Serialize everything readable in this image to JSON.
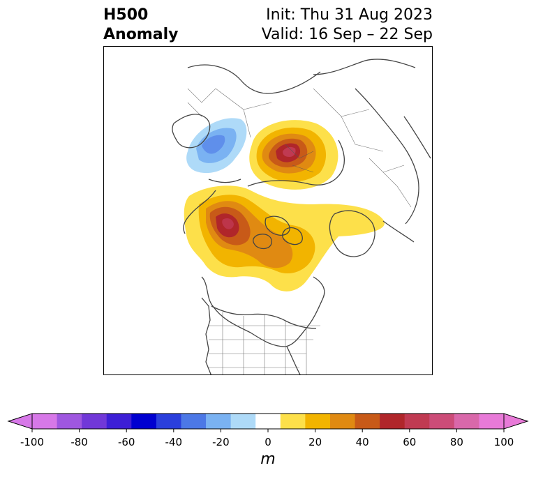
{
  "title": {
    "left_line1": "H500",
    "left_line2": "Anomaly",
    "right_line1": "Init: Thu 31 Aug 2023",
    "right_line2": "Valid: 16 Sep – 22 Sep"
  },
  "colorbar": {
    "unit_label": "m",
    "ticks": [
      "-100",
      "-80",
      "-60",
      "-40",
      "-20",
      "0",
      "20",
      "40",
      "60",
      "80",
      "100"
    ],
    "levels": [
      -100,
      -90,
      -80,
      -70,
      -60,
      -50,
      -40,
      -30,
      -20,
      -10,
      10,
      20,
      30,
      40,
      50,
      60,
      70,
      80,
      90,
      100
    ],
    "colors": [
      "#d778e8",
      "#9f57e0",
      "#7138d8",
      "#3d1fd6",
      "#0000d0",
      "#2a3fdc",
      "#4c78e6",
      "#7ab2f2",
      "#aedaf8",
      "#ffffff",
      "#fde04a",
      "#f2b400",
      "#e08a12",
      "#c85a18",
      "#b0262a",
      "#c03a52",
      "#cc4c78",
      "#d968aa",
      "#e87ad8"
    ],
    "extend_low_color": "#d778e8",
    "extend_high_color": "#e87ad8"
  },
  "map": {
    "projection": "north-polar",
    "features": [
      "coastlines",
      "country-borders",
      "us-state-borders"
    ]
  }
}
